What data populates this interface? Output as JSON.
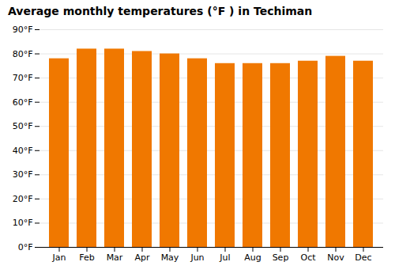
{
  "chart_data": {
    "type": "bar",
    "title": "Average monthly temperatures (°F ) in Techiman",
    "categories": [
      "Jan",
      "Feb",
      "Mar",
      "Apr",
      "May",
      "Jun",
      "Jul",
      "Aug",
      "Sep",
      "Oct",
      "Nov",
      "Dec"
    ],
    "values": [
      78,
      82,
      82,
      81,
      80,
      78,
      76,
      76,
      76,
      77,
      79,
      77
    ],
    "color": "#F07800",
    "ylim": [
      0,
      90
    ],
    "yticks": [
      {
        "value": 0,
        "label": "0°F"
      },
      {
        "value": 10,
        "label": "10°F"
      },
      {
        "value": 20,
        "label": "20°F"
      },
      {
        "value": 30,
        "label": "30°F"
      },
      {
        "value": 40,
        "label": "40°F"
      },
      {
        "value": 50,
        "label": "50°F"
      },
      {
        "value": 60,
        "label": "60°F"
      },
      {
        "value": 70,
        "label": "70°F"
      },
      {
        "value": 80,
        "label": "80°F"
      },
      {
        "value": 90,
        "label": "90°F"
      }
    ],
    "grid": true
  }
}
